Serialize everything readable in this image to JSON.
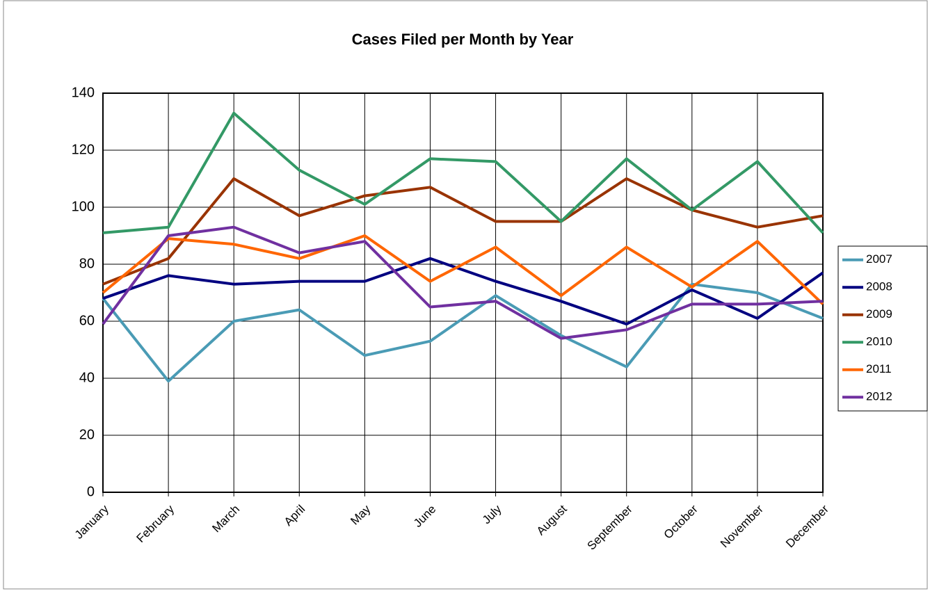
{
  "chart_data": {
    "type": "line",
    "title": "Cases Filed per Month by Year",
    "categories": [
      "January",
      "February",
      "March",
      "April",
      "May",
      "June",
      "July",
      "August",
      "September",
      "October",
      "November",
      "December"
    ],
    "series": [
      {
        "name": "2007",
        "color": "#4a9bb5",
        "values": [
          68,
          39,
          60,
          64,
          48,
          53,
          69,
          55,
          44,
          73,
          70,
          61
        ]
      },
      {
        "name": "2008",
        "color": "#000080",
        "values": [
          68,
          76,
          73,
          74,
          74,
          82,
          74,
          67,
          59,
          71,
          61,
          77
        ]
      },
      {
        "name": "2009",
        "color": "#993300",
        "values": [
          73,
          82,
          110,
          97,
          104,
          107,
          95,
          95,
          110,
          99,
          93,
          97
        ]
      },
      {
        "name": "2010",
        "color": "#339966",
        "values": [
          91,
          93,
          133,
          113,
          101,
          117,
          116,
          95,
          117,
          99,
          116,
          91
        ]
      },
      {
        "name": "2011",
        "color": "#ff6600",
        "values": [
          70,
          89,
          87,
          82,
          90,
          74,
          86,
          69,
          86,
          72,
          88,
          66
        ]
      },
      {
        "name": "2012",
        "color": "#7030a0",
        "values": [
          59,
          90,
          93,
          84,
          88,
          65,
          67,
          54,
          57,
          66,
          66,
          67
        ]
      }
    ],
    "ylim": [
      0,
      140
    ],
    "yticks": [
      0,
      20,
      40,
      60,
      80,
      100,
      120,
      140
    ],
    "grid": true,
    "legend": "right"
  }
}
